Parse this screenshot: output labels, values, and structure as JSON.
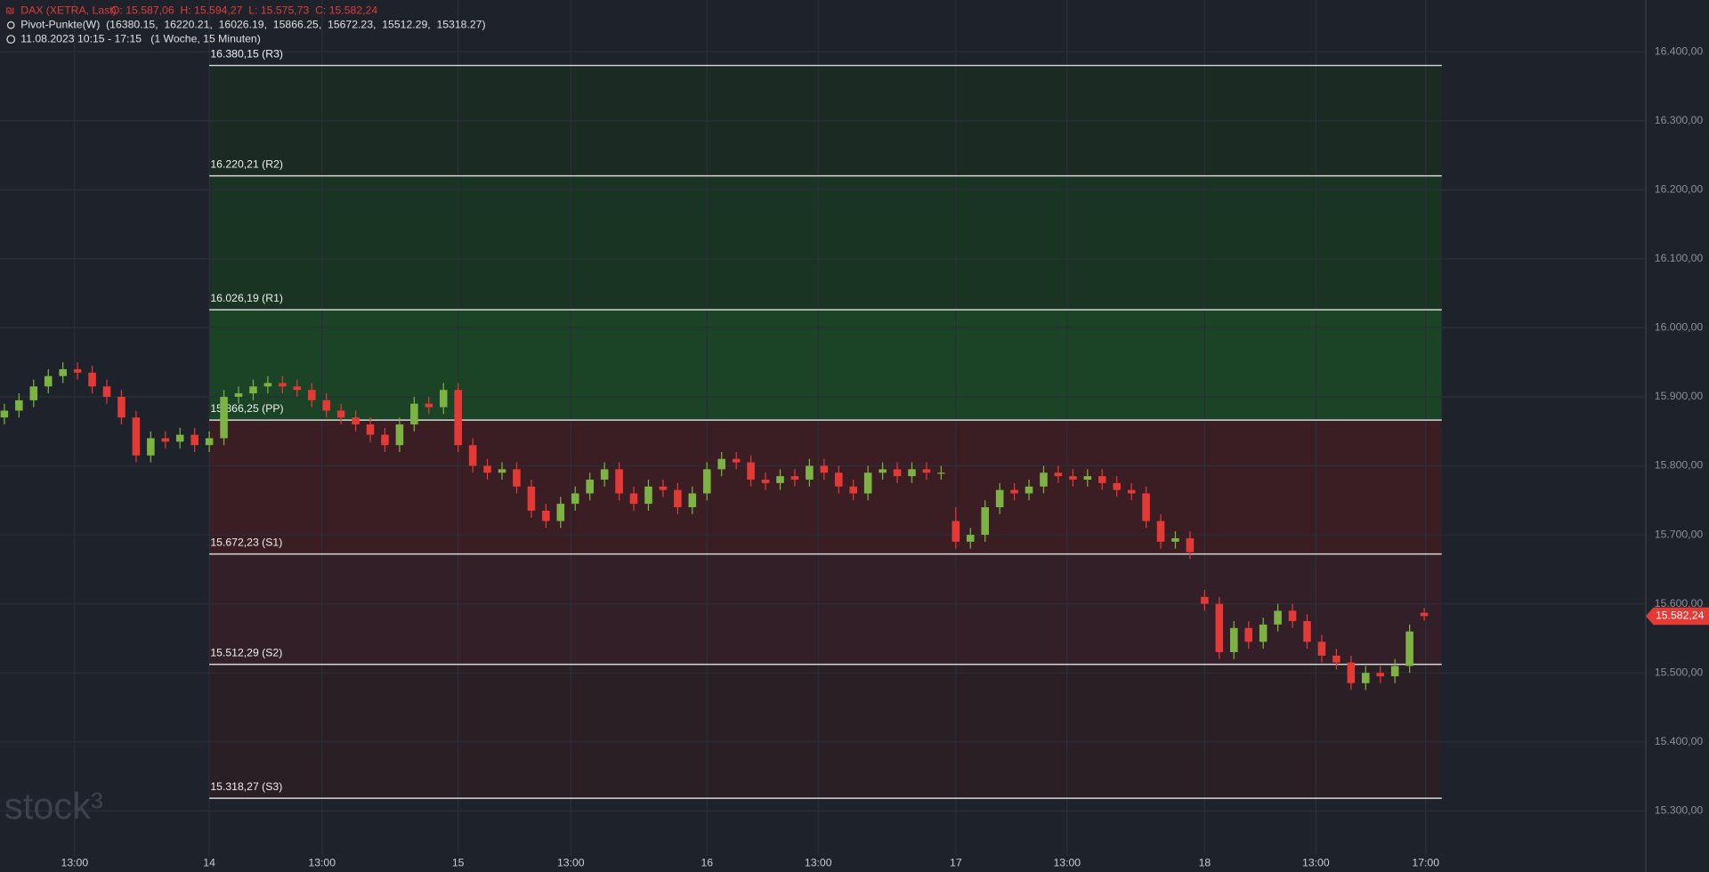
{
  "chart_data": {
    "type": "candlestick",
    "legend_title": "DAX (XETRA, Last)",
    "legend_ohlc": "O: 15.587,06  H: 15.594,27  L: 15.575,73  C: 15.582,24",
    "indicator": "Pivot-Punkte(W)  (16380.15,  16220.21,  16026.19,  15866.25,  15672.23,  15512.29,  15318.27)",
    "period": "11.08.2023 10:15 - 17:15   (1 Woche, 15 Minuten)",
    "watermark": "stock³",
    "up_color": "#7cb342",
    "down_color": "#e53935",
    "ylim": [
      15243,
      16475
    ],
    "yticks": [
      {
        "value": 15300,
        "label": "15.300,00"
      },
      {
        "value": 15400,
        "label": "15.400,00"
      },
      {
        "value": 15500,
        "label": "15.500,00"
      },
      {
        "value": 15600,
        "label": "15.600,00"
      },
      {
        "value": 15700,
        "label": "15.700,00"
      },
      {
        "value": 15800,
        "label": "15.800,00"
      },
      {
        "value": 15900,
        "label": "15.900,00"
      },
      {
        "value": 16000,
        "label": "16.000,00"
      },
      {
        "value": 16100,
        "label": "16.100,00"
      },
      {
        "value": 16200,
        "label": "16.200,00"
      },
      {
        "value": 16300,
        "label": "16.300,00"
      },
      {
        "value": 16400,
        "label": "16.400,00"
      }
    ],
    "xticks": [
      {
        "value": 4.8,
        "label": "13:00"
      },
      {
        "value": 14,
        "label": "14"
      },
      {
        "value": 21.7,
        "label": "13:00"
      },
      {
        "value": 31,
        "label": "15"
      },
      {
        "value": 38.7,
        "label": "13:00"
      },
      {
        "value": 48,
        "label": "16"
      },
      {
        "value": 55.6,
        "label": "13:00"
      },
      {
        "value": 65,
        "label": "17"
      },
      {
        "value": 72.6,
        "label": "13:00"
      },
      {
        "value": 82,
        "label": "18"
      },
      {
        "value": 89.6,
        "label": "13:00"
      },
      {
        "value": 97.1,
        "label": "17:00"
      }
    ],
    "levels": [
      {
        "value": 16380.15,
        "label": "16.380,15 (R3)"
      },
      {
        "value": 16220.21,
        "label": "16.220,21 (R2)"
      },
      {
        "value": 16026.19,
        "label": "16.026,19 (R1)"
      },
      {
        "value": 15866.25,
        "label": "15.866,25 (PP)"
      },
      {
        "value": 15672.23,
        "label": "15.672,23 (S1)"
      },
      {
        "value": 15512.29,
        "label": "15.512,29 (S2)"
      },
      {
        "value": 15318.27,
        "label": "15.318,27 (S3)"
      }
    ],
    "last_price": {
      "value": 15582.24,
      "label": "15.582,24"
    },
    "open": [
      15870,
      15880,
      15895,
      15915,
      15930,
      15940,
      15935,
      15915,
      15900,
      15870,
      15815,
      15840,
      15835,
      15845,
      15830,
      15840,
      15900,
      15905,
      15915,
      15920,
      15915,
      15910,
      15895,
      15880,
      15870,
      15860,
      15845,
      15830,
      15860,
      15890,
      15885,
      15910,
      15830,
      15800,
      15790,
      15795,
      15770,
      15735,
      15720,
      15745,
      15760,
      15780,
      15795,
      15760,
      15745,
      15770,
      15765,
      15740,
      15760,
      15795,
      15810,
      15805,
      15780,
      15775,
      15785,
      15780,
      15800,
      15790,
      15770,
      15760,
      15790,
      15795,
      15785,
      15795,
      15790,
      15720,
      15690,
      15700,
      15740,
      15765,
      15760,
      15770,
      15790,
      15785,
      15780,
      15785,
      15775,
      15765,
      15760,
      15720,
      15690,
      15695,
      15610,
      15600,
      15530,
      15565,
      15545,
      15570,
      15590,
      15575,
      15545,
      15525,
      15515,
      15485,
      15500,
      15495,
      15510,
      15587.06
    ],
    "high": [
      15890,
      15905,
      15925,
      15940,
      15950,
      15950,
      15945,
      15925,
      15910,
      15880,
      15850,
      15850,
      15855,
      15855,
      15850,
      15910,
      15915,
      15925,
      15930,
      15930,
      15925,
      15920,
      15905,
      15890,
      15880,
      15870,
      15855,
      15870,
      15900,
      15900,
      15920,
      15920,
      15840,
      15810,
      15805,
      15805,
      15780,
      15745,
      15755,
      15770,
      15790,
      15805,
      15805,
      15770,
      15780,
      15780,
      15775,
      15770,
      15805,
      15820,
      15820,
      15815,
      15790,
      15795,
      15795,
      15810,
      15810,
      15800,
      15780,
      15800,
      15805,
      15805,
      15805,
      15805,
      15800,
      15740,
      15710,
      15750,
      15775,
      15775,
      15780,
      15800,
      15800,
      15795,
      15795,
      15795,
      15785,
      15775,
      15770,
      15730,
      15705,
      15705,
      15620,
      15610,
      15575,
      15575,
      15580,
      15600,
      15600,
      15585,
      15555,
      15535,
      15525,
      15510,
      15510,
      15520,
      15570,
      15594.27
    ],
    "low": [
      15860,
      15870,
      15885,
      15905,
      15920,
      15925,
      15905,
      15890,
      15860,
      15805,
      15805,
      15825,
      15825,
      15820,
      15820,
      15830,
      15890,
      15895,
      15905,
      15905,
      15900,
      15885,
      15870,
      15860,
      15850,
      15835,
      15820,
      15820,
      15850,
      15875,
      15875,
      15820,
      15790,
      15780,
      15780,
      15760,
      15725,
      15710,
      15710,
      15735,
      15750,
      15770,
      15750,
      15735,
      15735,
      15755,
      15730,
      15730,
      15750,
      15785,
      15795,
      15770,
      15765,
      15765,
      15770,
      15770,
      15780,
      15760,
      15750,
      15750,
      15780,
      15775,
      15775,
      15780,
      15780,
      15680,
      15680,
      15690,
      15730,
      15750,
      15750,
      15760,
      15775,
      15770,
      15770,
      15765,
      15755,
      15750,
      15710,
      15680,
      15680,
      15665,
      15590,
      15520,
      15520,
      15535,
      15535,
      15560,
      15565,
      15535,
      15515,
      15505,
      15475,
      15475,
      15485,
      15485,
      15500,
      15575.73
    ],
    "close": [
      15880,
      15895,
      15915,
      15930,
      15940,
      15935,
      15915,
      15900,
      15870,
      15815,
      15840,
      15835,
      15845,
      15830,
      15840,
      15900,
      15905,
      15915,
      15920,
      15915,
      15910,
      15895,
      15880,
      15870,
      15860,
      15845,
      15830,
      15860,
      15890,
      15885,
      15910,
      15830,
      15800,
      15790,
      15795,
      15770,
      15735,
      15720,
      15745,
      15760,
      15780,
      15795,
      15760,
      15745,
      15770,
      15765,
      15740,
      15760,
      15795,
      15810,
      15805,
      15780,
      15775,
      15785,
      15780,
      15800,
      15790,
      15770,
      15760,
      15790,
      15795,
      15785,
      15795,
      15790,
      15790,
      15690,
      15700,
      15740,
      15765,
      15760,
      15770,
      15790,
      15785,
      15780,
      15785,
      15775,
      15765,
      15760,
      15720,
      15690,
      15695,
      15675,
      15600,
      15530,
      15565,
      15545,
      15570,
      15590,
      15575,
      15545,
      15525,
      15515,
      15485,
      15500,
      15495,
      15510,
      15560,
      15582.24
    ]
  }
}
